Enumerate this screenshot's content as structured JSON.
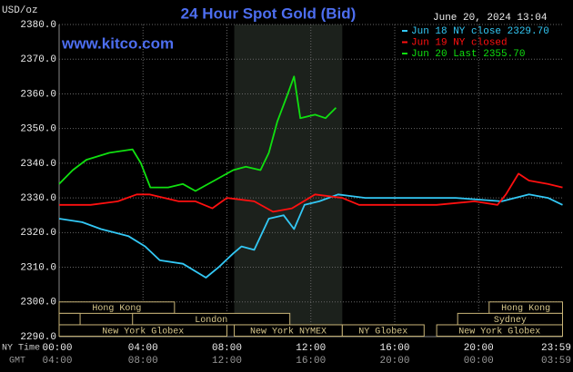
{
  "chart_data": {
    "type": "line",
    "title": "24 Hour Spot Gold (Bid)",
    "unit_label": "USD/oz",
    "site": "www.kitco.com",
    "timestamp": "June 20, 2024 13:04",
    "x_row_label": "NY Time",
    "x2_row_label": "GMT",
    "xlim": [
      0,
      24
    ],
    "ylim": [
      2290,
      2380
    ],
    "xticks": [
      {
        "value": 0,
        "label": "00:00"
      },
      {
        "value": 4,
        "label": "04:00"
      },
      {
        "value": 8,
        "label": "08:00"
      },
      {
        "value": 12,
        "label": "12:00"
      },
      {
        "value": 16,
        "label": "16:00"
      },
      {
        "value": 20,
        "label": "20:00"
      },
      {
        "value": 23.98,
        "label": "23:59"
      }
    ],
    "x2_tick_labels": [
      "04:00",
      "08:00",
      "12:00",
      "16:00",
      "20:00",
      "00:00",
      "03:59"
    ],
    "yticks": [
      {
        "value": 2290,
        "label": "2290.0"
      },
      {
        "value": 2300,
        "label": "2300.0"
      },
      {
        "value": 2310,
        "label": "2310.0"
      },
      {
        "value": 2320,
        "label": "2320.0"
      },
      {
        "value": 2330,
        "label": "2330.0"
      },
      {
        "value": 2340,
        "label": "2340.0"
      },
      {
        "value": 2350,
        "label": "2350.0"
      },
      {
        "value": 2360,
        "label": "2360.0"
      },
      {
        "value": 2370,
        "label": "2370.0"
      },
      {
        "value": 2380,
        "label": "2380.0"
      }
    ],
    "grid": true,
    "highlight": [
      8.35,
      13.5
    ],
    "series": [
      {
        "name": "Jun 18 NY close 2329.70",
        "color": "#33c8f5",
        "x": [
          0,
          1.1,
          2.0,
          3.3,
          4.1,
          4.8,
          5.9,
          7.0,
          7.6,
          8.3,
          8.7,
          9.3,
          10.0,
          10.7,
          11.2,
          11.7,
          12.4,
          13.3,
          14.6,
          16.7,
          18.9,
          21.1,
          22.4,
          23.3,
          24
        ],
        "y": [
          2324,
          2323,
          2321,
          2319,
          2316,
          2312,
          2311,
          2307,
          2310,
          2314,
          2316,
          2315,
          2324,
          2325,
          2321,
          2328,
          2329,
          2331,
          2330,
          2330,
          2330,
          2329,
          2331,
          2330,
          2328
        ]
      },
      {
        "name": "Jun 19 NY closed",
        "color": "#ff1010",
        "x": [
          0,
          1.5,
          2.8,
          3.7,
          4.3,
          5.7,
          6.5,
          7.3,
          8.0,
          9.3,
          10.2,
          11.1,
          12.2,
          13.5,
          14.3,
          18.0,
          19.8,
          20.9,
          21.3,
          21.9,
          22.4,
          23.3,
          24
        ],
        "y": [
          2328,
          2328,
          2329,
          2331,
          2331,
          2329,
          2329,
          2327,
          2330,
          2329,
          2326,
          2327,
          2331,
          2330,
          2328,
          2328,
          2329,
          2328,
          2331,
          2337,
          2335,
          2334,
          2333
        ]
      },
      {
        "name": "Jun 20 Last 2355.70",
        "color": "#10e010",
        "x": [
          0,
          0.65,
          1.3,
          2.4,
          3.5,
          3.9,
          4.35,
          5.2,
          5.9,
          6.5,
          7.4,
          8.3,
          8.9,
          9.6,
          10.0,
          10.4,
          10.9,
          11.2,
          11.5,
          12.2,
          12.7,
          13.2
        ],
        "y": [
          2334,
          2338,
          2341,
          2343,
          2344,
          2340,
          2333,
          2333,
          2334,
          2332,
          2335,
          2338,
          2339,
          2338,
          2343,
          2352,
          2360,
          2365,
          2353,
          2354,
          2353,
          2356
        ]
      }
    ],
    "sessions": [
      [
        {
          "label": "Hong Kong",
          "start": 0,
          "end": 5.5
        },
        {
          "label": "Hong Kong",
          "start": 20.5,
          "end": 24
        }
      ],
      [
        {
          "label": null,
          "start": 0,
          "end": 1.0
        },
        {
          "label": "London",
          "start": 3.5,
          "end": 11.0
        },
        {
          "label": "Sydney",
          "start": 19.0,
          "end": 24
        }
      ],
      [
        {
          "label": "New York Globex",
          "start": 0,
          "end": 8.0
        },
        {
          "label": "New York NYMEX",
          "start": 8.35,
          "end": 13.5
        },
        {
          "label": "NY Globex",
          "start": 13.5,
          "end": 17.4
        },
        {
          "label": "New York Globex",
          "start": 18.0,
          "end": 24
        }
      ]
    ]
  }
}
